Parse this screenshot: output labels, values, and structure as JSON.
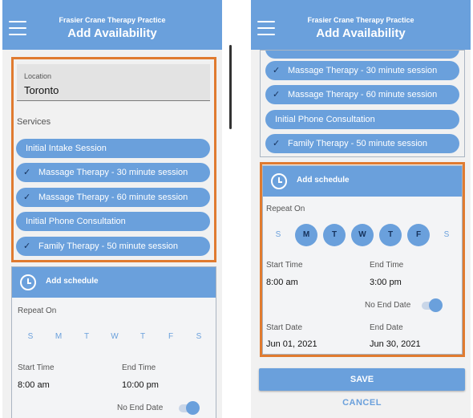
{
  "app": {
    "subtitle": "Frasier Crane Therapy Practice",
    "title": "Add Availability"
  },
  "location": {
    "label": "Location",
    "value": "Toronto"
  },
  "services": {
    "label": "Services",
    "items": [
      {
        "label": "Initial Intake Session",
        "checked": false
      },
      {
        "label": "Massage Therapy - 30 minute session",
        "checked": true
      },
      {
        "label": "Massage Therapy - 60 minute session",
        "checked": true
      },
      {
        "label": "Initial Phone Consultation",
        "checked": false
      },
      {
        "label": "Family Therapy - 50 minute session",
        "checked": true
      }
    ]
  },
  "schedule_left": {
    "title": "Add schedule",
    "repeat_label": "Repeat On",
    "days": [
      "S",
      "M",
      "T",
      "W",
      "T",
      "F",
      "S"
    ],
    "selected": [
      false,
      false,
      false,
      false,
      false,
      false,
      false
    ],
    "start_time_label": "Start Time",
    "start_time": "8:00 am",
    "end_time_label": "End Time",
    "end_time": "10:00 pm",
    "no_end_date_label": "No End Date",
    "no_end_date_on": true
  },
  "schedule_right": {
    "title": "Add schedule",
    "repeat_label": "Repeat On",
    "days": [
      "S",
      "M",
      "T",
      "W",
      "T",
      "F",
      "S"
    ],
    "selected": [
      false,
      true,
      true,
      true,
      true,
      true,
      false
    ],
    "start_time_label": "Start Time",
    "start_time": "8:00 am",
    "end_time_label": "End Time",
    "end_time": "3:00 pm",
    "no_end_date_label": "No End Date",
    "no_end_date_on": true,
    "start_date_label": "Start Date",
    "start_date": "Jun 01, 2021",
    "end_date_label": "End Date",
    "end_date": "Jun 30, 2021"
  },
  "actions": {
    "save": "SAVE",
    "cancel": "CANCEL"
  },
  "icons": {
    "menu": "hamburger-menu-icon",
    "check": "checkmark-icon",
    "clock": "clock-icon"
  },
  "colors": {
    "primary": "#6aa0dc",
    "highlight": "#e07b30",
    "check": "#16325c"
  }
}
